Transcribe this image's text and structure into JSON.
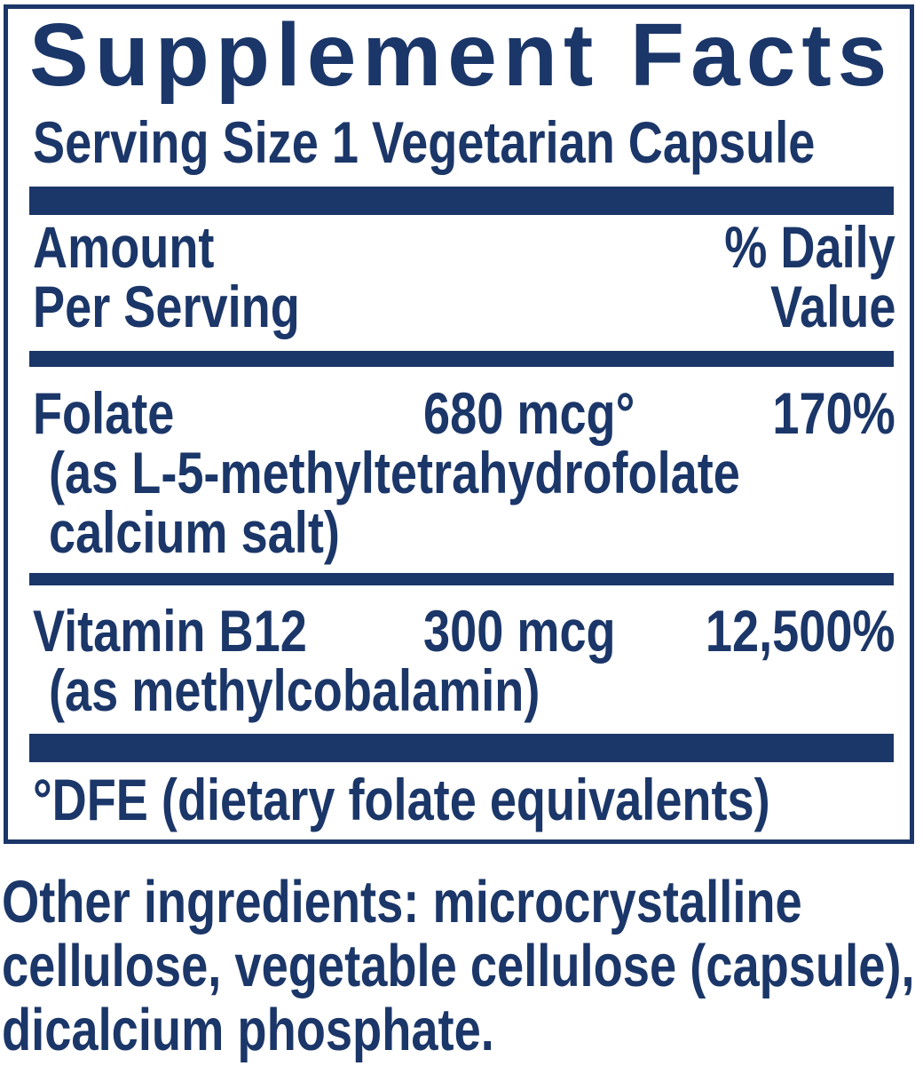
{
  "colors": {
    "navy": "#1b3668",
    "background": "#ffffff"
  },
  "supplement_facts": {
    "title": "Supplement Facts",
    "serving_size": "Serving Size 1 Vegetarian Capsule",
    "header": {
      "amount_line1": "Amount",
      "amount_line2": "Per Serving",
      "dv_line1": "% Daily",
      "dv_line2": "Value"
    },
    "nutrients": [
      {
        "name": "Folate",
        "amount": "680 mcg°",
        "daily_value": "170%",
        "details": [
          "(as L-5-methyltetrahydrofolate",
          "calcium salt)"
        ]
      },
      {
        "name": "Vitamin B12",
        "amount": "300 mcg",
        "daily_value": "12,500%",
        "details": [
          "(as methylcobalamin)"
        ]
      }
    ],
    "footnote": "°DFE (dietary folate equivalents)"
  },
  "other_ingredients": {
    "lines": [
      "Other ingredients: microcrystalline",
      "cellulose, vegetable cellulose (capsule),",
      "dicalcium phosphate."
    ]
  }
}
